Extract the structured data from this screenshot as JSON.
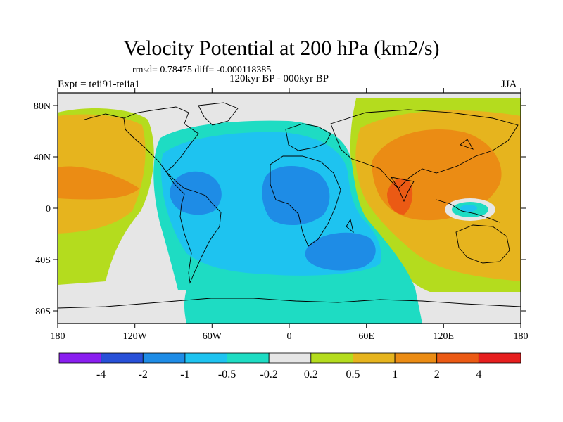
{
  "title": "Velocity Potential at 200 hPa (km2/s)",
  "stats": "rmsd= 0.78475 diff= -0.000118385",
  "period": "120kyr BP - 000kyr BP",
  "expt": "Expt = teii91-teiia1",
  "season": "JJA",
  "map": {
    "lon_ticks": [
      "180",
      "120W",
      "60W",
      "0",
      "60E",
      "120E",
      "180"
    ],
    "lat_ticks": [
      "80N",
      "40N",
      "0",
      "40S",
      "80S"
    ],
    "lon_range": [
      -180,
      180
    ],
    "lat_range": [
      -90,
      90
    ]
  },
  "colorbar": {
    "colors": [
      "#8a1ef0",
      "#2850d8",
      "#1e8ce6",
      "#1ec3f0",
      "#1edcc3",
      "#e6e6e6",
      "#b4dc1e",
      "#e6b41e",
      "#eb8c14",
      "#eb5a14",
      "#e61e1e"
    ],
    "labels": [
      "-4",
      "-2",
      "-1",
      "-0.5",
      "-0.2",
      "0.2",
      "0.5",
      "1",
      "2",
      "4"
    ]
  }
}
